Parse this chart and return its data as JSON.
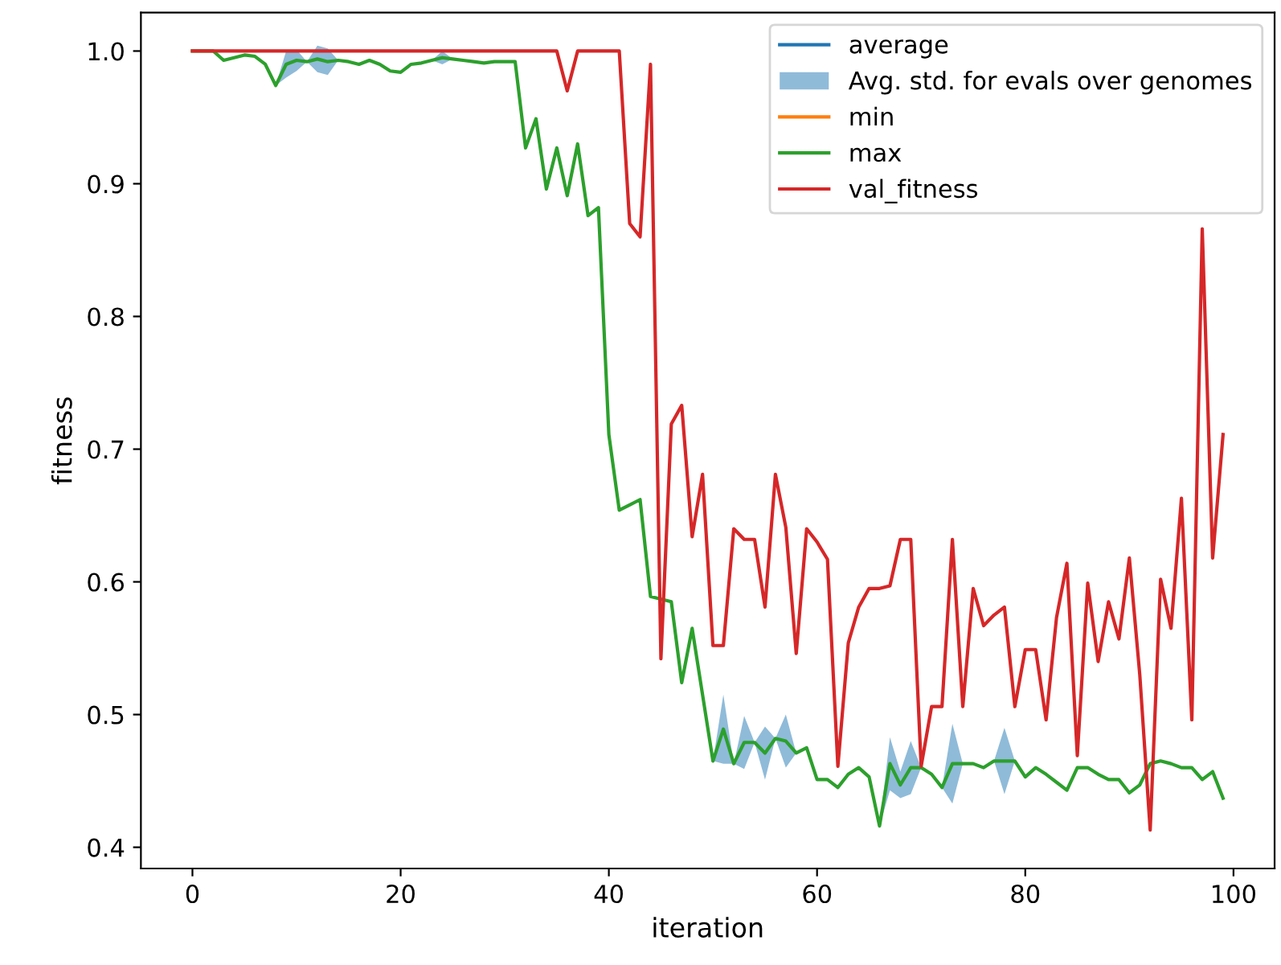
{
  "chart_data": {
    "type": "line",
    "xlabel": "iteration",
    "ylabel": "fitness",
    "xlim": [
      -4.95,
      103.95
    ],
    "ylim": [
      0.384,
      1.029
    ],
    "xticks": [
      0,
      20,
      40,
      60,
      80,
      100
    ],
    "yticks": [
      0.4,
      0.5,
      0.6,
      0.7,
      0.8,
      0.9,
      {
        "value": 1,
        "label": "1.0"
      }
    ],
    "legend": "top right",
    "grid": false,
    "marker": "none",
    "line_style": "solid",
    "x": [
      0,
      1,
      2,
      3,
      4,
      5,
      6,
      7,
      8,
      9,
      10,
      11,
      12,
      13,
      14,
      15,
      16,
      17,
      18,
      19,
      20,
      21,
      22,
      23,
      24,
      25,
      26,
      27,
      28,
      29,
      30,
      31,
      32,
      33,
      34,
      35,
      36,
      37,
      38,
      39,
      40,
      41,
      42,
      43,
      44,
      45,
      46,
      47,
      48,
      49,
      50,
      51,
      52,
      53,
      54,
      55,
      56,
      57,
      58,
      59,
      60,
      61,
      62,
      63,
      64,
      65,
      66,
      67,
      68,
      69,
      70,
      71,
      72,
      73,
      74,
      75,
      76,
      77,
      78,
      79,
      80,
      81,
      82,
      83,
      84,
      85,
      86,
      87,
      88,
      89,
      90,
      91,
      92,
      93,
      94,
      95,
      96,
      97,
      98,
      99
    ],
    "series": [
      {
        "name": "average",
        "color": "#1f77b4",
        "values": [
          null,
          null,
          null,
          null,
          null,
          null,
          null,
          null,
          null,
          null,
          null,
          null,
          null,
          null,
          null,
          null,
          null,
          null,
          null,
          null,
          null,
          null,
          null,
          null,
          null,
          null,
          null,
          null,
          null,
          null,
          null,
          null,
          null,
          null,
          null,
          null,
          null,
          null,
          null,
          null,
          null,
          null,
          null,
          null,
          null,
          null,
          null,
          null,
          null,
          null,
          null,
          null,
          null,
          null,
          null,
          null,
          null,
          null,
          null,
          null,
          null,
          null,
          null,
          null,
          null,
          null,
          null,
          null,
          null,
          null,
          null,
          null,
          null,
          null,
          null,
          null,
          null,
          null,
          null,
          null,
          null,
          null,
          null,
          null,
          null,
          null,
          null,
          null,
          null,
          null,
          null,
          null,
          null,
          null,
          null,
          null,
          null,
          null,
          null,
          null
        ]
      },
      {
        "name": "Avg. std. for evals over genomes",
        "color": "#1f77b4",
        "values": [
          null,
          null,
          null,
          null,
          null,
          null,
          null,
          null,
          null,
          null,
          null,
          null,
          null,
          null,
          null,
          null,
          null,
          null,
          null,
          null,
          null,
          null,
          null,
          null,
          null,
          null,
          null,
          null,
          null,
          null,
          null,
          null,
          null,
          null,
          null,
          null,
          null,
          null,
          null,
          null,
          null,
          null,
          null,
          null,
          null,
          null,
          null,
          null,
          null,
          null,
          null,
          null,
          null,
          null,
          null,
          null,
          null,
          null,
          null,
          null,
          null,
          null,
          null,
          null,
          null,
          null,
          null,
          null,
          null,
          null,
          null,
          null,
          null,
          null,
          null,
          null,
          null,
          null,
          null,
          null,
          null,
          null,
          null,
          null,
          null,
          null,
          null,
          null,
          null,
          null,
          null,
          null,
          null,
          null,
          null,
          null,
          null,
          null,
          null,
          null
        ],
        "lower": [
          1.0,
          1.0,
          1.0,
          0.993,
          0.995,
          0.997,
          0.996,
          0.99,
          0.974,
          0.98,
          0.985,
          0.992,
          0.984,
          0.982,
          0.993,
          0.992,
          0.99,
          0.993,
          0.99,
          0.985,
          0.984,
          0.99,
          0.991,
          0.993,
          0.99,
          0.994,
          0.993,
          0.992,
          0.991,
          0.992,
          0.992,
          0.992,
          0.927,
          0.949,
          0.896,
          0.927,
          0.891,
          0.93,
          0.876,
          0.882,
          0.711,
          0.654,
          0.658,
          0.662,
          0.589,
          0.587,
          0.585,
          0.524,
          0.565,
          0.515,
          0.465,
          0.463,
          0.463,
          0.459,
          0.479,
          0.451,
          0.482,
          0.46,
          0.471,
          0.475,
          0.451,
          0.451,
          0.445,
          0.455,
          0.46,
          0.453,
          0.416,
          0.443,
          0.437,
          0.44,
          0.46,
          0.455,
          0.445,
          0.433,
          0.463,
          0.463,
          0.46,
          0.465,
          0.44,
          0.465,
          0.453,
          0.46,
          0.455,
          0.449,
          0.443,
          0.46,
          0.46,
          0.455,
          0.451,
          0.451,
          0.441,
          0.447,
          0.463,
          0.465,
          0.463,
          0.46,
          0.46,
          0.451,
          0.457,
          0.437
        ],
        "upper": [
          1.0,
          1.0,
          1.0,
          0.993,
          0.995,
          0.997,
          0.996,
          0.99,
          0.974,
          1.0,
          1.001,
          0.992,
          1.004,
          1.002,
          0.993,
          0.992,
          0.99,
          0.993,
          0.99,
          0.985,
          0.984,
          0.99,
          0.991,
          0.993,
          1.0,
          0.994,
          0.993,
          0.992,
          0.991,
          0.992,
          0.992,
          0.992,
          0.927,
          0.949,
          0.896,
          0.927,
          0.891,
          0.93,
          0.876,
          0.882,
          0.711,
          0.654,
          0.658,
          0.662,
          0.589,
          0.587,
          0.585,
          0.524,
          0.565,
          0.515,
          0.465,
          0.515,
          0.463,
          0.499,
          0.479,
          0.491,
          0.482,
          0.5,
          0.471,
          0.475,
          0.451,
          0.451,
          0.445,
          0.455,
          0.46,
          0.453,
          0.416,
          0.483,
          0.457,
          0.48,
          0.46,
          0.455,
          0.445,
          0.493,
          0.463,
          0.463,
          0.46,
          0.465,
          0.49,
          0.465,
          0.453,
          0.46,
          0.455,
          0.449,
          0.443,
          0.46,
          0.46,
          0.455,
          0.451,
          0.451,
          0.441,
          0.447,
          0.463,
          0.465,
          0.463,
          0.46,
          0.46,
          0.451,
          0.457,
          0.437
        ]
      },
      {
        "name": "min",
        "color": "#ff7f0e",
        "values": [
          null,
          null,
          null,
          null,
          null,
          null,
          null,
          null,
          null,
          null,
          null,
          null,
          null,
          null,
          null,
          null,
          null,
          null,
          null,
          null,
          null,
          null,
          null,
          null,
          null,
          null,
          null,
          null,
          null,
          null,
          null,
          null,
          null,
          null,
          null,
          null,
          null,
          null,
          null,
          null,
          null,
          null,
          null,
          null,
          null,
          null,
          null,
          null,
          null,
          null,
          null,
          null,
          null,
          null,
          null,
          null,
          null,
          null,
          null,
          null,
          null,
          null,
          null,
          null,
          null,
          null,
          null,
          null,
          null,
          null,
          null,
          null,
          null,
          null,
          null,
          null,
          null,
          null,
          null,
          null,
          null,
          null,
          null,
          null,
          null,
          null,
          null,
          null,
          null,
          null,
          null,
          null,
          null,
          null,
          null,
          null,
          null,
          null,
          null,
          null
        ]
      },
      {
        "name": "max",
        "color": "#2ca02c",
        "values": [
          1.0,
          1.0,
          1.0,
          0.993,
          0.995,
          0.997,
          0.996,
          0.99,
          0.974,
          0.99,
          0.993,
          0.992,
          0.994,
          0.992,
          0.993,
          0.992,
          0.99,
          0.993,
          0.99,
          0.985,
          0.984,
          0.99,
          0.991,
          0.993,
          0.995,
          0.994,
          0.993,
          0.992,
          0.991,
          0.992,
          0.992,
          0.992,
          0.927,
          0.949,
          0.896,
          0.927,
          0.891,
          0.93,
          0.876,
          0.882,
          0.711,
          0.654,
          0.658,
          0.662,
          0.589,
          0.587,
          0.585,
          0.524,
          0.565,
          0.515,
          0.465,
          0.489,
          0.463,
          0.479,
          0.479,
          0.471,
          0.482,
          0.48,
          0.471,
          0.475,
          0.451,
          0.451,
          0.445,
          0.455,
          0.46,
          0.453,
          0.416,
          0.463,
          0.447,
          0.46,
          0.46,
          0.455,
          0.445,
          0.463,
          0.463,
          0.463,
          0.46,
          0.465,
          0.465,
          0.465,
          0.453,
          0.46,
          0.455,
          0.449,
          0.443,
          0.46,
          0.46,
          0.455,
          0.451,
          0.451,
          0.441,
          0.447,
          0.463,
          0.465,
          0.463,
          0.46,
          0.46,
          0.451,
          0.457,
          0.437
        ]
      },
      {
        "name": "val_fitness",
        "color": "#d62728",
        "values": [
          1.0,
          1.0,
          1.0,
          1.0,
          1.0,
          1.0,
          1.0,
          1.0,
          1.0,
          1.0,
          1.0,
          1.0,
          1.0,
          1.0,
          1.0,
          1.0,
          1.0,
          1.0,
          1.0,
          1.0,
          1.0,
          1.0,
          1.0,
          1.0,
          1.0,
          1.0,
          1.0,
          1.0,
          1.0,
          1.0,
          1.0,
          1.0,
          1.0,
          1.0,
          1.0,
          1.0,
          0.97,
          1.0,
          1.0,
          1.0,
          1.0,
          1.0,
          0.87,
          0.86,
          0.99,
          0.542,
          0.719,
          0.733,
          0.634,
          0.681,
          0.552,
          0.552,
          0.64,
          0.632,
          0.632,
          0.581,
          0.681,
          0.641,
          0.546,
          0.64,
          0.63,
          0.617,
          0.461,
          0.554,
          0.581,
          0.595,
          0.595,
          0.597,
          0.632,
          0.632,
          0.461,
          0.506,
          0.506,
          0.632,
          0.506,
          0.595,
          0.567,
          0.575,
          0.581,
          0.506,
          0.549,
          0.549,
          0.496,
          0.573,
          0.614,
          0.469,
          0.599,
          0.54,
          0.585,
          0.557,
          0.618,
          0.53,
          0.413,
          0.602,
          0.565,
          0.663,
          0.496,
          0.866,
          0.618,
          0.711
        ]
      }
    ]
  }
}
